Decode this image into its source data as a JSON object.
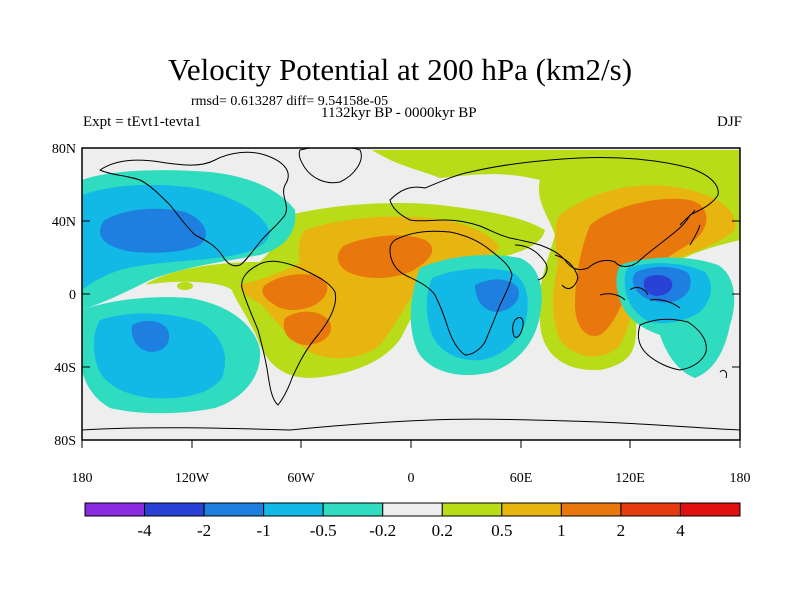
{
  "title": "Velocity Potential at 200 hPa (km2/s)",
  "stats": "rmsd= 0.613287 diff= 9.54158e-05",
  "period": "1132kyr BP - 0000kyr BP",
  "experiment": "Expt = tEvt1-tevta1",
  "season": "DJF",
  "axes": {
    "lat_labels": [
      "80N",
      "40N",
      "0",
      "40S",
      "80S"
    ],
    "lon_labels": [
      "180",
      "120W",
      "60W",
      "0",
      "60E",
      "120E",
      "180"
    ]
  },
  "colorbar": {
    "labels": [
      "-4",
      "-2",
      "-1",
      "-0.5",
      "-0.2",
      "0.2",
      "0.5",
      "1",
      "2",
      "4"
    ],
    "colors": [
      "#8a2be2",
      "#2a41d6",
      "#1f7fe0",
      "#12b8e6",
      "#2fdcc0",
      "#eeeeee",
      "#b8dc18",
      "#e8b410",
      "#e8780e",
      "#e23c10",
      "#e01010"
    ]
  },
  "chart_data": {
    "type": "filled-contour-map",
    "title": "Velocity Potential at 200 hPa (km2/s)",
    "field": "velocity potential difference (1132kyr BP - 0000kyr BP)",
    "season": "DJF",
    "units": "km2/s",
    "levels": [
      -4,
      -2,
      -1,
      -0.5,
      -0.2,
      0.2,
      0.5,
      1,
      2,
      4
    ],
    "lon_range": [
      -180,
      180
    ],
    "lat_range": [
      -90,
      90
    ],
    "features": [
      {
        "region": "North Pacific / North America",
        "center_lon": -140,
        "center_lat": 35,
        "value_class": "-2 to -1"
      },
      {
        "region": "South Pacific",
        "center_lon": -135,
        "center_lat": -25,
        "value_class": "-2 to -1"
      },
      {
        "region": "Western Indian Ocean / East Africa",
        "center_lon": 45,
        "center_lat": -5,
        "value_class": "-2 to -1"
      },
      {
        "region": "Maritime Continent / West Pacific",
        "center_lon": 130,
        "center_lat": 8,
        "value_class": "-4 to -2"
      },
      {
        "region": "Tropical South America",
        "center_lon": -55,
        "center_lat": -10,
        "value_class": "1 to 2"
      },
      {
        "region": "North Africa / Tropical Atlantic",
        "center_lon": -10,
        "center_lat": 25,
        "value_class": "1 to 2"
      },
      {
        "region": "South and East Asia",
        "center_lon": 100,
        "center_lat": 25,
        "value_class": "1 to 2"
      },
      {
        "region": "Arctic / Eurasia",
        "center_lon": 60,
        "center_lat": 75,
        "value_class": "0.2 to 0.5"
      }
    ]
  }
}
